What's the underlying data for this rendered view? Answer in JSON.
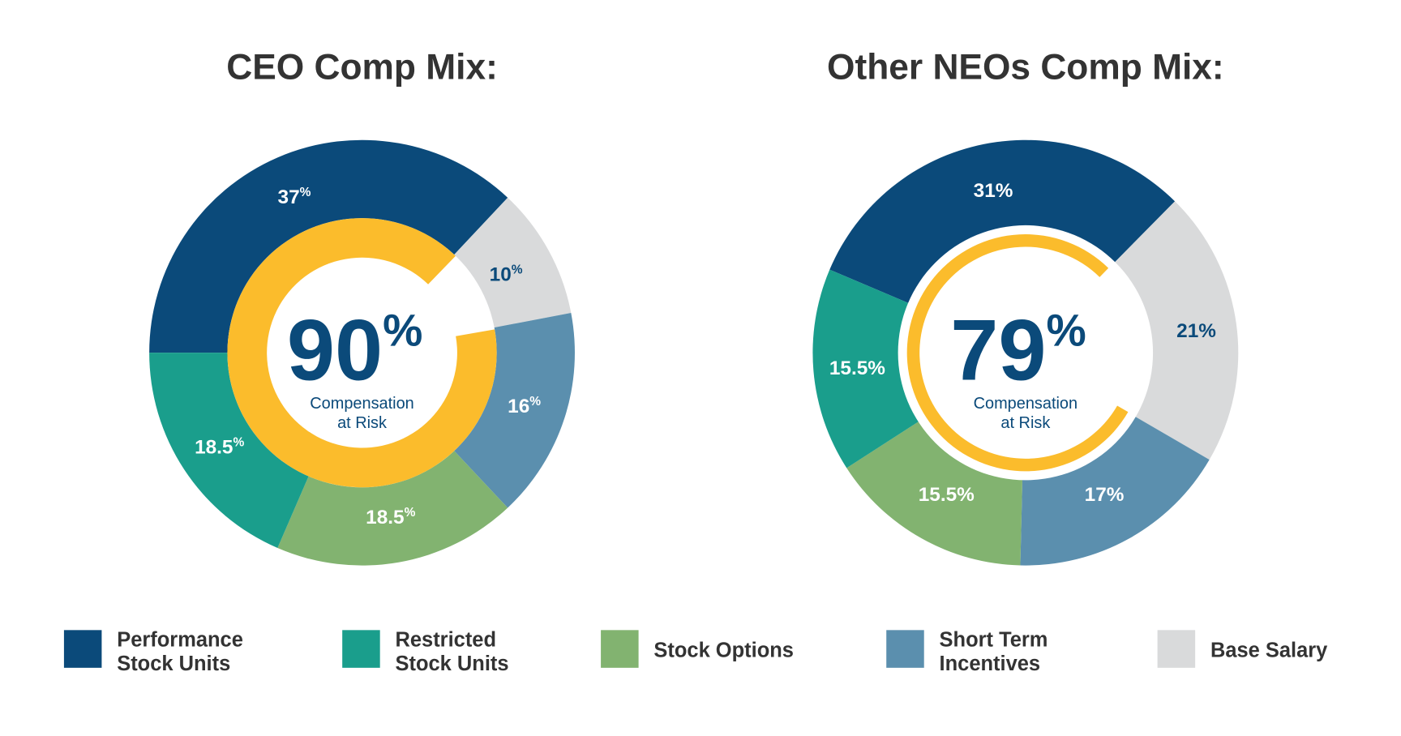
{
  "chart_data": [
    {
      "type": "pie",
      "title": "CEO Comp Mix:",
      "center_value": "90",
      "center_unit": "%",
      "center_label_1": "Compensation",
      "center_label_2": "at Risk",
      "at_risk_percent": 90,
      "slices": [
        {
          "category": "Performance Stock Units",
          "value": 37,
          "label": "37",
          "unit": "%"
        },
        {
          "category": "Base Salary",
          "value": 10,
          "label": "10",
          "unit": "%"
        },
        {
          "category": "Short Term Incentives",
          "value": 16,
          "label": "16",
          "unit": "%"
        },
        {
          "category": "Stock Options",
          "value": 18.5,
          "label": "18.5",
          "unit": "%"
        },
        {
          "category": "Restricted Stock Units",
          "value": 18.5,
          "label": "18.5",
          "unit": "%"
        }
      ]
    },
    {
      "type": "pie",
      "title": "Other NEOs Comp Mix:",
      "center_value": "79",
      "center_unit": "%",
      "center_label_1": "Compensation",
      "center_label_2": "at Risk",
      "at_risk_percent": 79,
      "slices": [
        {
          "category": "Performance Stock Units",
          "value": 31,
          "label": "31",
          "unit": "%"
        },
        {
          "category": "Base Salary",
          "value": 21,
          "label": "21",
          "unit": "%"
        },
        {
          "category": "Short Term Incentives",
          "value": 17,
          "label": "17",
          "unit": "%"
        },
        {
          "category": "Stock Options",
          "value": 15.5,
          "label": "15.5",
          "unit": "%"
        },
        {
          "category": "Restricted Stock Units",
          "value": 15.5,
          "label": "15.5",
          "unit": "%"
        }
      ]
    }
  ],
  "legend": [
    {
      "line1": "Performance",
      "line2": "Stock Units",
      "color": "#0b4a7a"
    },
    {
      "line1": "Restricted",
      "line2": "Stock Units",
      "color": "#1a9e8c"
    },
    {
      "line1": "Stock Options",
      "line2": "",
      "color": "#82b370"
    },
    {
      "line1": "Short Term",
      "line2": "Incentives",
      "color": "#5b8fae"
    },
    {
      "line1": "Base Salary",
      "line2": "",
      "color": "#d9dadb"
    }
  ],
  "colors": {
    "Performance Stock Units": "#0b4a7a",
    "Restricted Stock Units": "#1a9e8c",
    "Stock Options": "#82b370",
    "Short Term Incentives": "#5b8fae",
    "Base Salary": "#d9dadb",
    "at_risk_ring": "#fbbc2c"
  }
}
